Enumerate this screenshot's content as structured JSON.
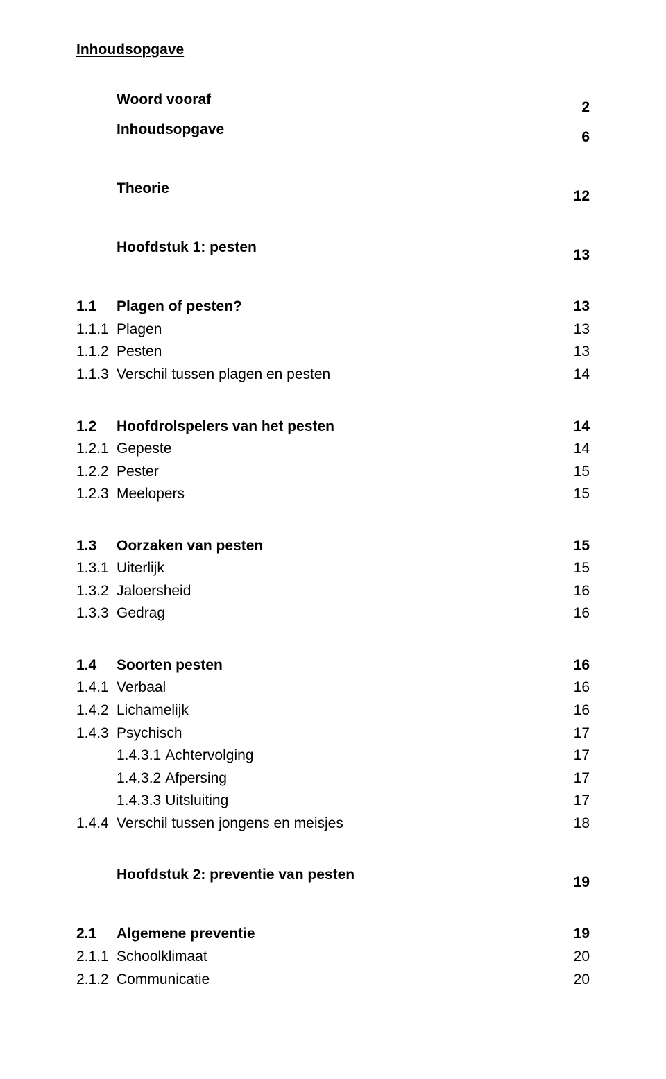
{
  "title": "Inhoudsopgave",
  "colors": {
    "text": "#000000",
    "background": "#ffffff"
  },
  "typography": {
    "font_family": "Arial",
    "base_size_pt": 16,
    "bold_weight": 700
  },
  "toc": [
    {
      "num": "",
      "label": "Woord vooraf",
      "page": "2",
      "bold": true,
      "gap": ""
    },
    {
      "num": "",
      "label": "Inhoudsopgave",
      "page": "6",
      "bold": true,
      "gap": ""
    },
    {
      "num": "",
      "label": "Theorie",
      "page": "12",
      "bold": true,
      "gap": "lg"
    },
    {
      "num": "",
      "label": "Hoofdstuk 1: pesten",
      "page": "13",
      "bold": true,
      "gap": "lg"
    },
    {
      "num": "1.1",
      "label": "Plagen of pesten?",
      "page": "13",
      "bold": true,
      "gap": "lg"
    },
    {
      "num": "1.1.1",
      "label": "Plagen",
      "page": "13",
      "bold": false,
      "gap": ""
    },
    {
      "num": "1.1.2",
      "label": "Pesten",
      "page": "13",
      "bold": false,
      "gap": ""
    },
    {
      "num": "1.1.3",
      "label": "Verschil tussen plagen en pesten",
      "page": "14",
      "bold": false,
      "gap": ""
    },
    {
      "num": "1.2",
      "label": "Hoofdrolspelers van het pesten",
      "page": "14",
      "bold": true,
      "gap": "lg"
    },
    {
      "num": "1.2.1",
      "label": "Gepeste",
      "page": "14",
      "bold": false,
      "gap": ""
    },
    {
      "num": "1.2.2",
      "label": "Pester",
      "page": "15",
      "bold": false,
      "gap": ""
    },
    {
      "num": "1.2.3",
      "label": "Meelopers",
      "page": "15",
      "bold": false,
      "gap": ""
    },
    {
      "num": "1.3",
      "label": "Oorzaken van pesten",
      "page": "15",
      "bold": true,
      "gap": "lg"
    },
    {
      "num": "1.3.1",
      "label": "Uiterlijk",
      "page": "15",
      "bold": false,
      "gap": ""
    },
    {
      "num": "1.3.2",
      "label": "Jaloersheid",
      "page": "16",
      "bold": false,
      "gap": ""
    },
    {
      "num": "1.3.3",
      "label": "Gedrag",
      "page": "16",
      "bold": false,
      "gap": ""
    },
    {
      "num": "1.4",
      "label": "Soorten pesten",
      "page": "16",
      "bold": true,
      "gap": "lg"
    },
    {
      "num": "1.4.1",
      "label": "Verbaal",
      "page": "16",
      "bold": false,
      "gap": ""
    },
    {
      "num": "1.4.2",
      "label": "Lichamelijk",
      "page": "16",
      "bold": false,
      "gap": ""
    },
    {
      "num": "1.4.3",
      "label": "Psychisch",
      "page": "17",
      "bold": false,
      "gap": ""
    },
    {
      "num": "1.4.3.1",
      "label": "Achtervolging",
      "page": "17",
      "bold": false,
      "gap": "",
      "sub": true
    },
    {
      "num": "1.4.3.2",
      "label": "Afpersing",
      "page": "17",
      "bold": false,
      "gap": "",
      "sub": true
    },
    {
      "num": "1.4.3.3",
      "label": "Uitsluiting",
      "page": "17",
      "bold": false,
      "gap": "",
      "sub": true
    },
    {
      "num": "1.4.4",
      "label": "Verschil tussen jongens en meisjes",
      "page": "18",
      "bold": false,
      "gap": ""
    },
    {
      "num": "",
      "label": "Hoofdstuk 2: preventie van pesten",
      "page": "19",
      "bold": true,
      "gap": "lg"
    },
    {
      "num": "2.1",
      "label": "Algemene preventie",
      "page": "19",
      "bold": true,
      "gap": "lg"
    },
    {
      "num": "2.1.1",
      "label": "Schoolklimaat",
      "page": "20",
      "bold": false,
      "gap": ""
    },
    {
      "num": "2.1.2",
      "label": "Communicatie",
      "page": "20",
      "bold": false,
      "gap": ""
    }
  ]
}
